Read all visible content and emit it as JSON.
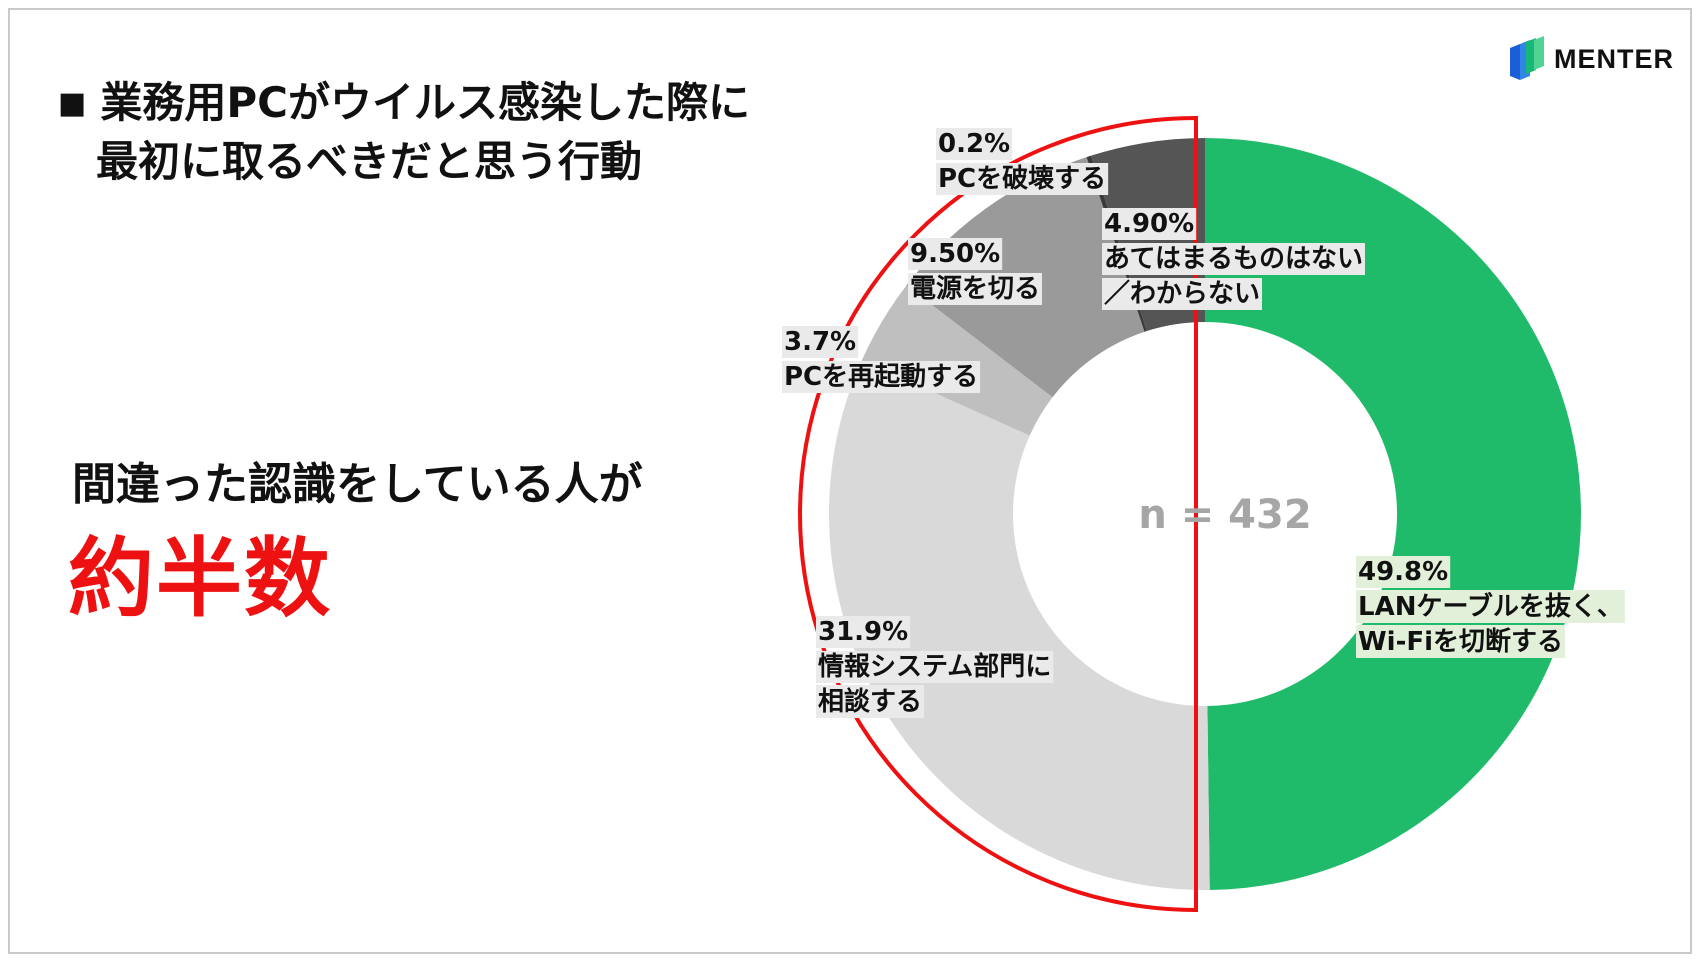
{
  "title": {
    "bullet": "■",
    "line1": "業務用PCがウイルス感染した際に",
    "line2": "最初に取るべきだと思う行動"
  },
  "message": "間違った認識をしている人が",
  "emphasis": "約半数",
  "brand": {
    "name": "MENTER",
    "icon": "menter-logo-icon",
    "colors": [
      "#1a5fd6",
      "#17b877"
    ]
  },
  "chart_data": {
    "type": "donut",
    "center_label": "n = 432",
    "segments": [
      {
        "value": 49.8,
        "pct": "49.8%",
        "label_lines": [
          "LANケーブルを抜く、",
          "Wi-Fiを切断する"
        ],
        "color": "#20bb6a",
        "label_bg": "#e2f0d9"
      },
      {
        "value": 31.9,
        "pct": "31.9%",
        "label_lines": [
          "情報システム部門に",
          "相談する"
        ],
        "color": "#d9d9d9",
        "label_bg": "#eaeaea"
      },
      {
        "value": 3.7,
        "pct": "3.7%",
        "label_lines": [
          "PCを再起動する"
        ],
        "color": "#bfbfbf",
        "label_bg": "#eaeaea"
      },
      {
        "value": 9.5,
        "pct": "9.50%",
        "label_lines": [
          "電源を切る"
        ],
        "color": "#9a9a9a",
        "label_bg": "#eaeaea"
      },
      {
        "value": 0.2,
        "pct": "0.2%",
        "label_lines": [
          "PCを破壊する"
        ],
        "color": "#3a3a3a",
        "label_bg": "#eaeaea"
      },
      {
        "value": 4.9,
        "pct": "4.90%",
        "label_lines": [
          "あてはまるものはない",
          "／わからない"
        ],
        "color": "#555555",
        "label_bg": "#eaeaea"
      }
    ],
    "highlight": {
      "shape": "left-half",
      "color": "#ee1111"
    }
  }
}
